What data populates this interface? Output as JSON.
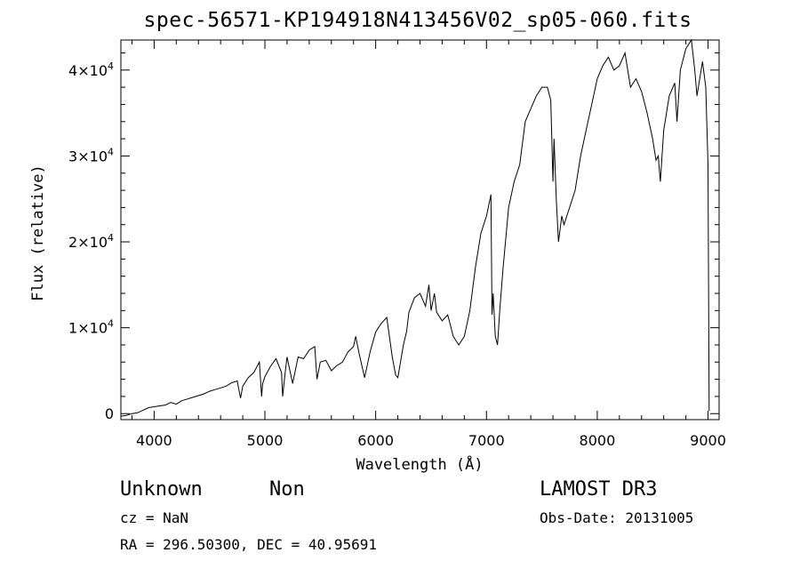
{
  "chart_data": {
    "type": "line",
    "title": "spec-56571-KP194918N413456V02_sp05-060.fits",
    "xlabel": "Wavelength (Å)",
    "ylabel": "Flux (relative)",
    "xlim": [
      3700,
      9100
    ],
    "ylim": [
      -700,
      43500
    ],
    "x_ticks": [
      4000,
      5000,
      6000,
      7000,
      8000,
      9000
    ],
    "y_ticks": [
      {
        "value": 0,
        "mantissa": "0",
        "exponent": ""
      },
      {
        "value": 10000,
        "mantissa": "1×10",
        "exponent": "4"
      },
      {
        "value": 20000,
        "mantissa": "2×10",
        "exponent": "4"
      },
      {
        "value": 30000,
        "mantissa": "3×10",
        "exponent": "4"
      },
      {
        "value": 40000,
        "mantissa": "4×10",
        "exponent": "4"
      }
    ],
    "grid": false,
    "series": [
      {
        "color": "#000000",
        "x": [
          3700,
          3750,
          3800,
          3850,
          3900,
          3950,
          4000,
          4050,
          4100,
          4150,
          4200,
          4250,
          4300,
          4350,
          4400,
          4450,
          4500,
          4550,
          4600,
          4650,
          4700,
          4750,
          4780,
          4800,
          4850,
          4900,
          4950,
          4970,
          4980,
          5000,
          5050,
          5100,
          5150,
          5160,
          5180,
          5200,
          5250,
          5300,
          5350,
          5400,
          5450,
          5470,
          5500,
          5550,
          5600,
          5650,
          5700,
          5750,
          5800,
          5820,
          5850,
          5880,
          5900,
          5950,
          6000,
          6050,
          6100,
          6150,
          6180,
          6200,
          6250,
          6280,
          6300,
          6350,
          6400,
          6450,
          6480,
          6500,
          6530,
          6550,
          6600,
          6650,
          6700,
          6750,
          6800,
          6850,
          6900,
          6950,
          7000,
          7040,
          7050,
          7060,
          7080,
          7100,
          7120,
          7150,
          7200,
          7250,
          7300,
          7350,
          7400,
          7450,
          7500,
          7550,
          7580,
          7600,
          7610,
          7630,
          7650,
          7680,
          7700,
          7750,
          7800,
          7850,
          7900,
          7950,
          8000,
          8050,
          8100,
          8150,
          8200,
          8250,
          8300,
          8350,
          8400,
          8450,
          8500,
          8530,
          8550,
          8570,
          8600,
          8650,
          8700,
          8720,
          8750,
          8800,
          8850,
          8880,
          8900,
          8950,
          8980,
          9000,
          9010
        ],
        "y": [
          -300,
          -200,
          0,
          100,
          400,
          700,
          800,
          900,
          1000,
          1300,
          1100,
          1500,
          1700,
          1900,
          2100,
          2300,
          2600,
          2800,
          3000,
          3200,
          3600,
          3800,
          1800,
          3200,
          4200,
          4800,
          6000,
          2000,
          3500,
          4300,
          5500,
          6400,
          4800,
          2000,
          4500,
          6600,
          3500,
          6600,
          6400,
          7400,
          7800,
          4000,
          6000,
          6200,
          5000,
          5600,
          6000,
          7200,
          7800,
          9000,
          7000,
          5300,
          4200,
          7200,
          9500,
          10500,
          11200,
          6600,
          4500,
          4200,
          8000,
          9600,
          11800,
          13500,
          14000,
          12500,
          15000,
          12000,
          14000,
          11800,
          10800,
          11500,
          9000,
          8000,
          9000,
          12000,
          17000,
          21000,
          23000,
          25500,
          11500,
          14000,
          9000,
          8000,
          12000,
          17000,
          24000,
          27000,
          29000,
          34000,
          35500,
          37000,
          38000,
          38000,
          36500,
          27000,
          32000,
          25000,
          20000,
          23000,
          22000,
          24000,
          26000,
          30000,
          33000,
          36000,
          39000,
          40500,
          41500,
          40000,
          40500,
          42000,
          38000,
          39000,
          37500,
          35000,
          32000,
          29500,
          30000,
          27000,
          33000,
          37000,
          38500,
          34000,
          40000,
          42500,
          43500,
          40000,
          37000,
          41000,
          38000,
          29000,
          300
        ]
      }
    ]
  },
  "info": {
    "class": "Unknown",
    "subclass": "Non",
    "survey": "LAMOST DR3",
    "cz": "cz = NaN",
    "obs_date": "Obs-Date: 20131005",
    "radec": "RA = 296.50300, DEC =  40.95691"
  }
}
